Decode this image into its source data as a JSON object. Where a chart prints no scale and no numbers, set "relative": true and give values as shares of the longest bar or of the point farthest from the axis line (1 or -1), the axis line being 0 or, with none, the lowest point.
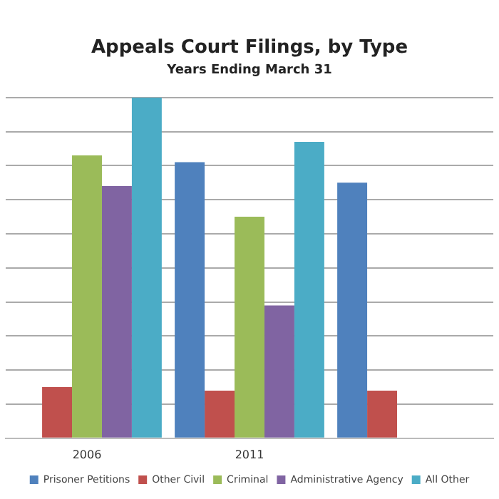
{
  "chart_data": {
    "type": "bar",
    "title": "Appeals Court Filings, by Type",
    "subtitle": "Years Ending March 31",
    "categories": [
      "2006",
      "2011",
      null
    ],
    "relative": true,
    "grid": "y",
    "legend": "bottom",
    "series": [
      {
        "name": "Prisoner Petitions",
        "color": "#4f81bd",
        "values": [
          null,
          0.81,
          0.75
        ]
      },
      {
        "name": "Other Civil",
        "color": "#c0504d",
        "values": [
          0.15,
          0.14,
          0.14
        ]
      },
      {
        "name": "Criminal",
        "color": "#9bbb59",
        "values": [
          0.83,
          0.65,
          null
        ]
      },
      {
        "name": "Administrative Agency",
        "color": "#8064a2",
        "values": [
          0.74,
          0.39,
          null
        ]
      },
      {
        "name": "All Other",
        "color": "#4bacc6",
        "values": [
          1,
          0.87,
          null
        ]
      }
    ]
  }
}
